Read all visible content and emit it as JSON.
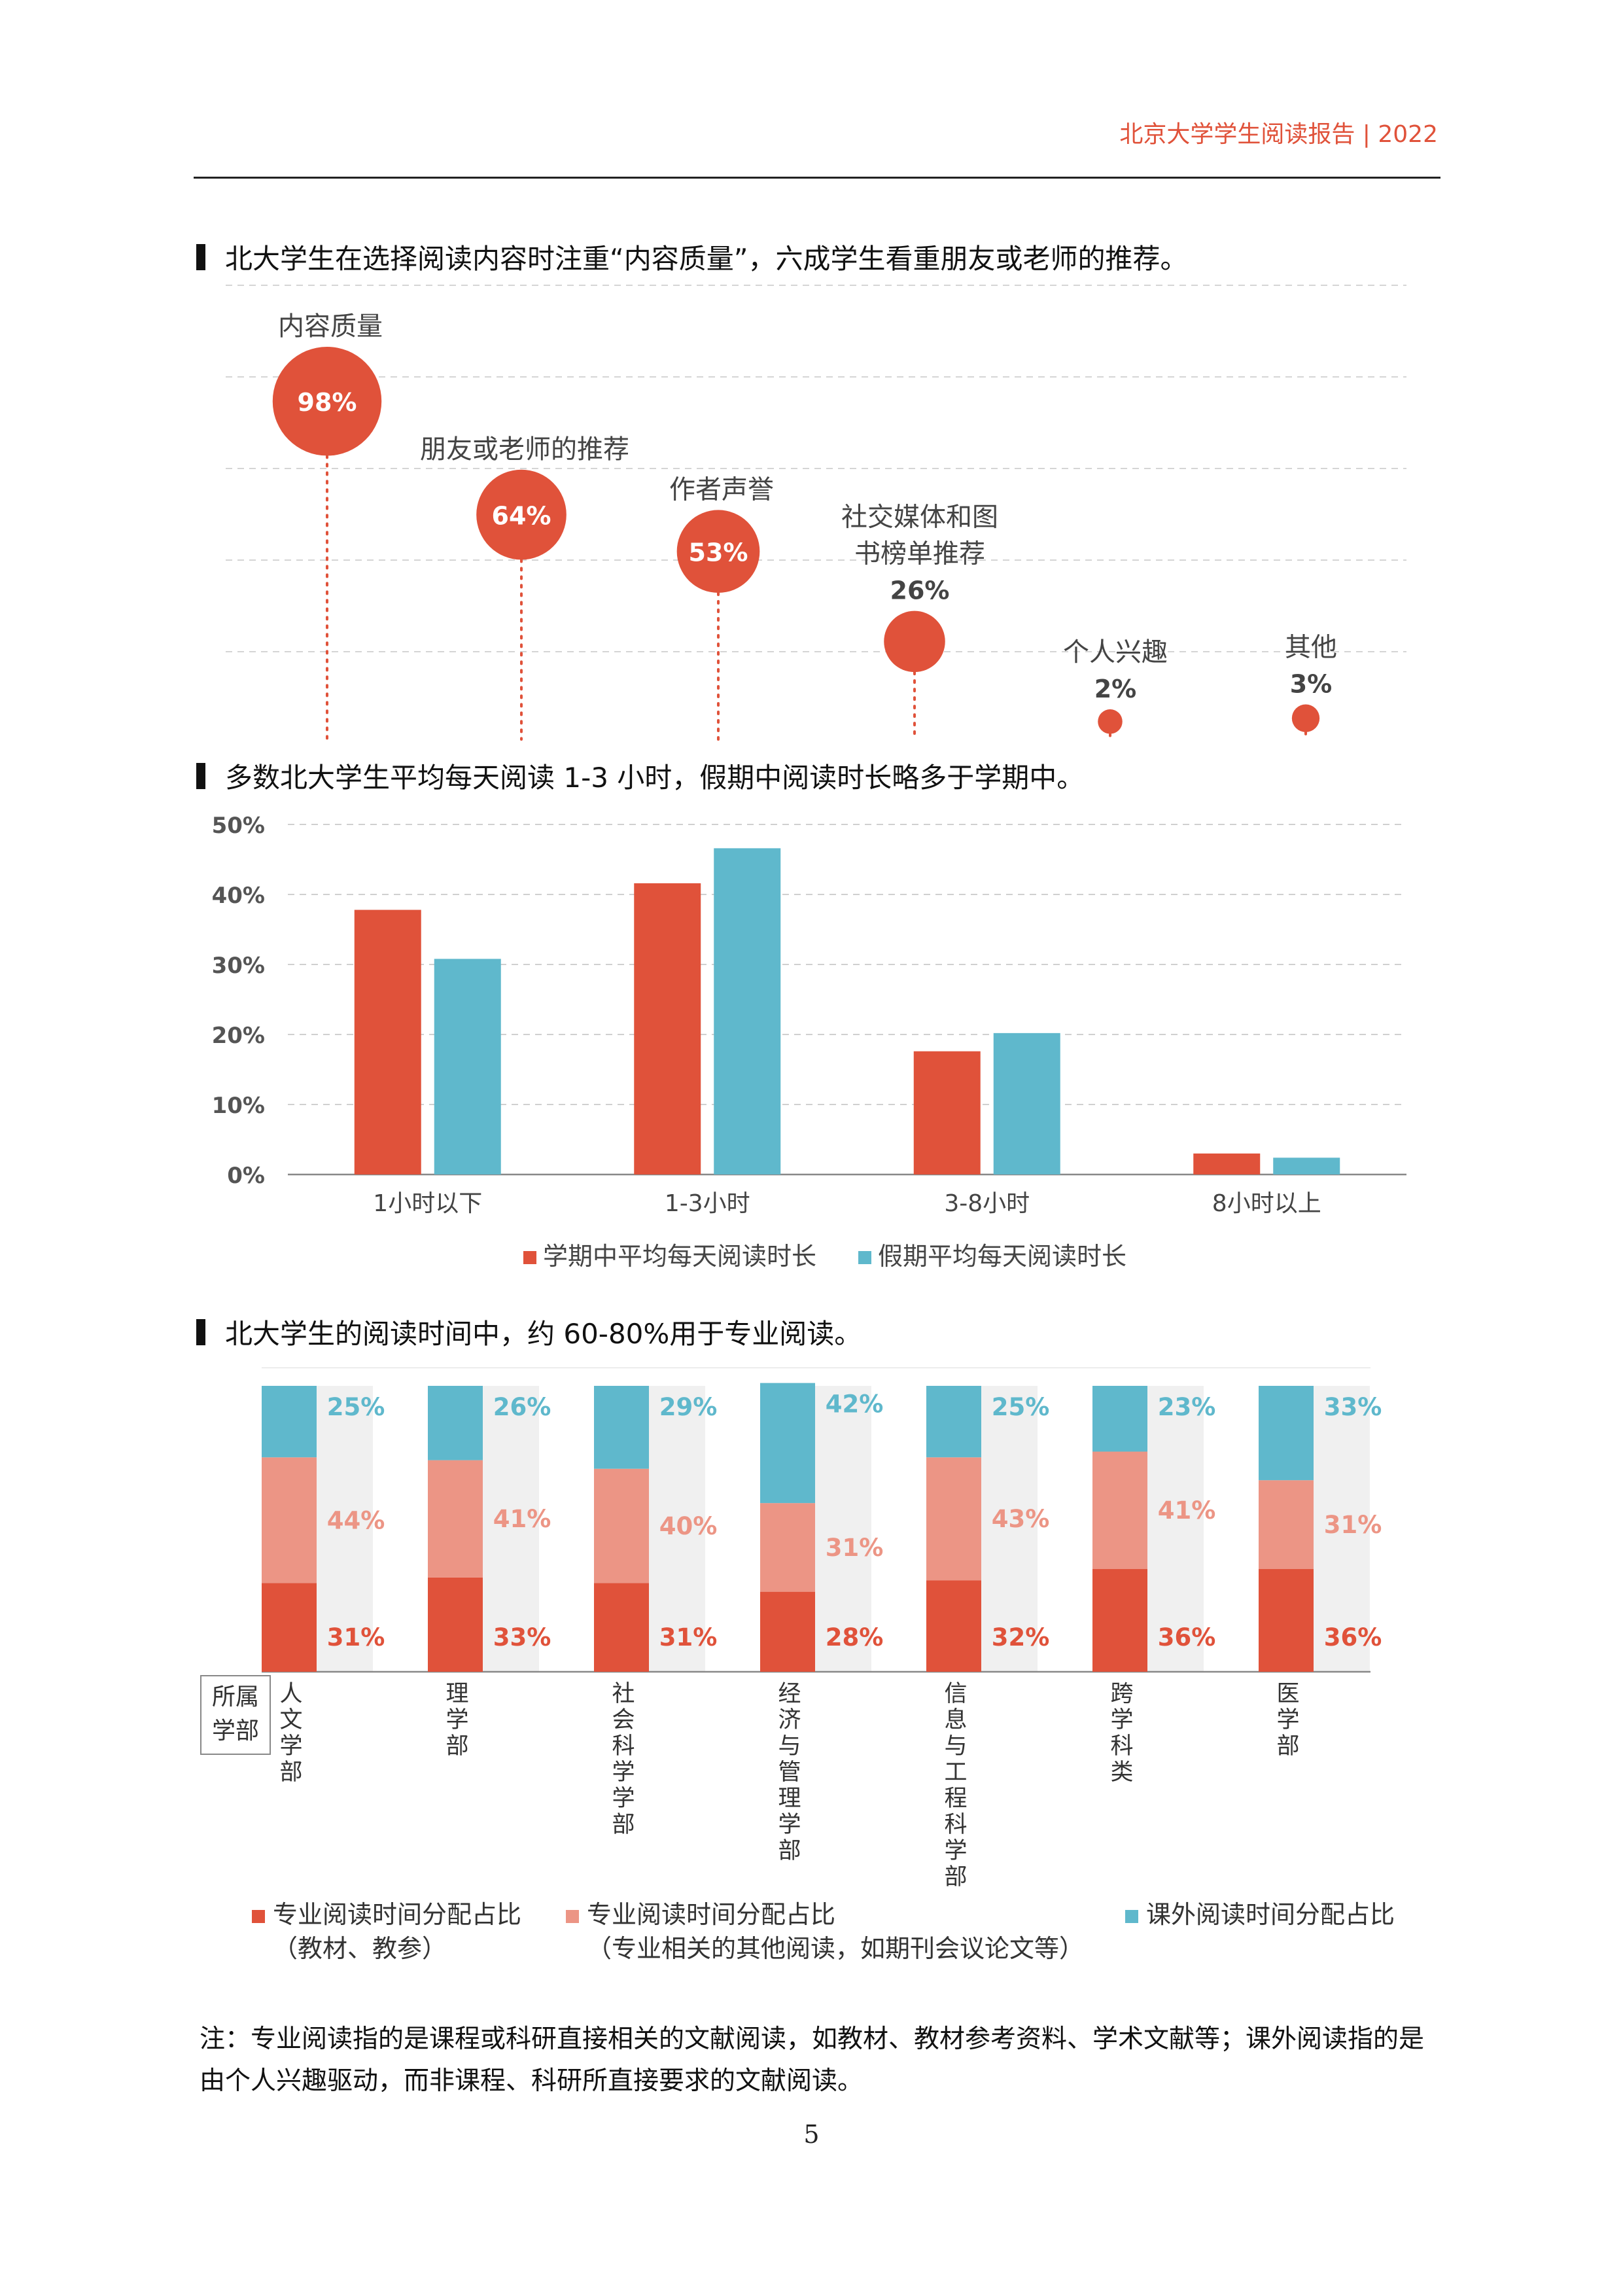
{
  "header": {
    "title": "北京大学学生阅读报告  | 2022"
  },
  "sections": {
    "s1_heading": "北大学生在选择阅读内容时注重“内容质量”，六成学生看重朋友或老师的推荐。",
    "s2_heading": "多数北大学生平均每天阅读 1-3 小时，假期中阅读时长略多于学期中。",
    "s3_heading": "北大学生的阅读时间中，约 60-80%用于专业阅读。"
  },
  "colors": {
    "red": "#e0523a",
    "teal": "#5fb8cc",
    "pink": "#ec9585",
    "stripe": "#f0f0f0",
    "grid": "#cccccc"
  },
  "chart_data": [
    {
      "type": "scatter",
      "categories": [
        "内容质量",
        "朋友或老师的推荐",
        "作者声誉",
        "社交媒体和图书榜单推荐",
        "个人兴趣",
        "其他"
      ],
      "labels": [
        [
          "内容质量"
        ],
        [
          "朋友或老师的推荐"
        ],
        [
          "作者声誉"
        ],
        [
          "社交媒体和图",
          "书榜单推荐"
        ],
        [
          "个人兴趣"
        ],
        [
          "其他"
        ]
      ],
      "values": [
        98,
        64,
        53,
        26,
        2,
        3
      ],
      "value_labels": [
        "98%",
        "64%",
        "53%",
        "26%",
        "2%",
        "3%"
      ]
    },
    {
      "type": "bar",
      "categories": [
        "1小时以下",
        "1-3小时",
        "3-8小时",
        "8小时以上"
      ],
      "series": [
        {
          "name": "学期中平均每天阅读时长",
          "values": [
            37.8,
            41.6,
            17.6,
            3.0
          ]
        },
        {
          "name": "假期平均每天阅读时长",
          "values": [
            30.8,
            46.6,
            20.2,
            2.4
          ]
        }
      ],
      "yticks": [
        "0%",
        "10%",
        "20%",
        "30%",
        "40%",
        "50%"
      ],
      "ylim": [
        0,
        50
      ],
      "grid": true,
      "legend": "bottom"
    },
    {
      "type": "bar",
      "stacked": true,
      "axis_label": [
        "所属",
        "学部"
      ],
      "categories": [
        "人文学部",
        "理学部",
        "社会科学学部",
        "经济与管理学部",
        "信息与工程科学部",
        "跨学科类",
        "医学部"
      ],
      "series": [
        {
          "name": "专业阅读时间分配占比",
          "sub": "（教材、教参）",
          "values": [
            31,
            33,
            31,
            28,
            32,
            36,
            36
          ],
          "labels": [
            "31%",
            "33%",
            "31%",
            "28%",
            "32%",
            "36%",
            "36%"
          ]
        },
        {
          "name": "专业阅读时间分配占比",
          "sub": "（专业相关的其他阅读，如期刊会议论文等）",
          "values": [
            44,
            41,
            40,
            31,
            43,
            41,
            31
          ],
          "labels": [
            "44%",
            "41%",
            "40%",
            "31%",
            "43%",
            "41%",
            "31%"
          ]
        },
        {
          "name": "课外阅读时间分配占比",
          "values": [
            25,
            26,
            29,
            42,
            25,
            23,
            33
          ],
          "labels": [
            "25%",
            "26%",
            "29%",
            "42%",
            "25%",
            "23%",
            "33%"
          ]
        }
      ],
      "ylim": [
        0,
        100
      ],
      "legend": "bottom"
    }
  ],
  "note": "注：专业阅读指的是课程或科研直接相关的文献阅读，如教材、教材参考资料、学术文献等；课外阅读指的是由个人兴趣驱动，而非课程、科研所直接要求的文献阅读。",
  "page_number": "5"
}
